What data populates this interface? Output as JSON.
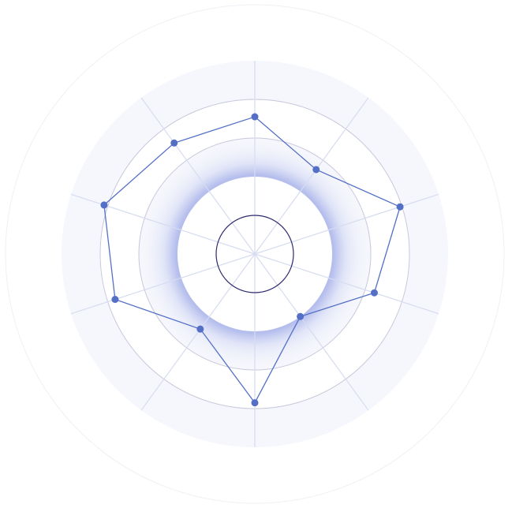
{
  "chart_data": {
    "type": "radar",
    "title": "",
    "indicator_count": 10,
    "max": 100,
    "split_levels": [
      20,
      40,
      60,
      80,
      100
    ],
    "series": [
      {
        "values": [
          71,
          54,
          79,
          65,
          40,
          77,
          48,
          76,
          82,
          71
        ]
      }
    ],
    "grid": true,
    "legend": "none",
    "colors": {
      "series": "#5470c6",
      "split_line": "#c8c8dc",
      "axis_line": "#d6dcf0",
      "band": "#f6f7fc",
      "inner_ring": "#2e2a6e"
    }
  }
}
